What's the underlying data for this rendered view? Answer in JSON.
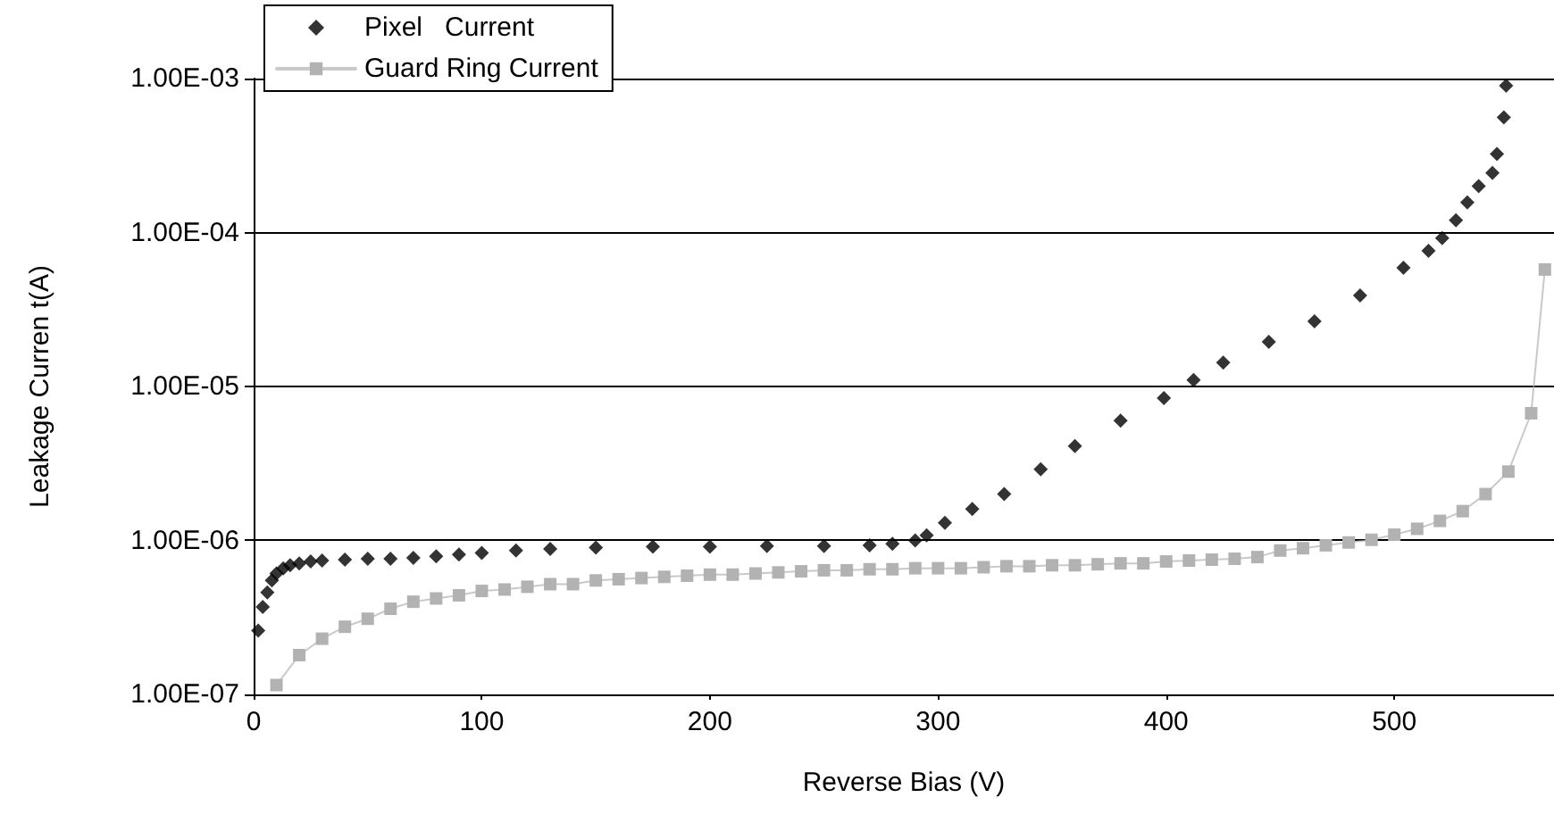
{
  "chart_data": {
    "type": "scatter",
    "xlabel": "Reverse Bias (V)",
    "ylabel": "Leakage Curren t(A)",
    "log": "y",
    "grid": "y",
    "legend": "top left",
    "xlim": [
      0,
      570
    ],
    "xticks": [
      0,
      100,
      200,
      300,
      400,
      500
    ],
    "ylim": [
      1e-07,
      0.001
    ],
    "yticks": [
      {
        "value": 1e-07,
        "label": "1.00E-07"
      },
      {
        "value": 1e-06,
        "label": "1.00E-06"
      },
      {
        "value": 1e-05,
        "label": "1.00E-05"
      },
      {
        "value": 0.0001,
        "label": "1.00E-04"
      },
      {
        "value": 0.001,
        "label": "1.00E-03"
      }
    ],
    "series": [
      {
        "name": "Pixel   Current",
        "marker": "diamond",
        "color": "#000000",
        "x": [
          2,
          4,
          6,
          8,
          10,
          13,
          16,
          20,
          25,
          30,
          40,
          50,
          60,
          70,
          80,
          90,
          100,
          115,
          130,
          150,
          175,
          200,
          225,
          250,
          270,
          280,
          290,
          295,
          303,
          315,
          329,
          345,
          360,
          380,
          399,
          412,
          425,
          445,
          465,
          485,
          504,
          515,
          521,
          527,
          532,
          537,
          543,
          545,
          548,
          549
        ],
        "values": [
          2.6e-07,
          3.7e-07,
          4.6e-07,
          5.5e-07,
          6.1e-07,
          6.6e-07,
          6.9e-07,
          7.1e-07,
          7.3e-07,
          7.4e-07,
          7.5e-07,
          7.6e-07,
          7.6e-07,
          7.7e-07,
          7.9e-07,
          8.1e-07,
          8.3e-07,
          8.6e-07,
          8.8e-07,
          9e-07,
          9.1e-07,
          9.1e-07,
          9.2e-07,
          9.2e-07,
          9.3e-07,
          9.5e-07,
          1e-06,
          1.08e-06,
          1.3e-06,
          1.6e-06,
          2e-06,
          2.9e-06,
          4.1e-06,
          6e-06,
          8.4e-06,
          1.1e-05,
          1.43e-05,
          1.95e-05,
          2.65e-05,
          3.9e-05,
          5.9e-05,
          7.6e-05,
          9.2e-05,
          0.00012,
          0.000157,
          0.0002,
          0.000244,
          0.000324,
          0.00056,
          0.0009
        ]
      },
      {
        "name": "Guard Ring Current",
        "type": "line",
        "marker": "square",
        "line_style": "solid",
        "color": "#b2b2b2",
        "x": [
          10,
          20,
          30,
          40,
          50,
          60,
          70,
          80,
          90,
          100,
          110,
          120,
          130,
          140,
          150,
          160,
          170,
          180,
          190,
          200,
          210,
          220,
          230,
          240,
          250,
          260,
          270,
          280,
          290,
          300,
          310,
          320,
          330,
          340,
          350,
          360,
          370,
          380,
          390,
          400,
          410,
          420,
          430,
          440,
          450,
          460,
          470,
          480,
          490,
          500,
          510,
          520,
          530,
          540,
          550,
          560,
          566
        ],
        "values": [
          1.15e-07,
          1.8e-07,
          2.3e-07,
          2.75e-07,
          3.1e-07,
          3.6e-07,
          4e-07,
          4.2e-07,
          4.4e-07,
          4.7e-07,
          4.8e-07,
          5e-07,
          5.2e-07,
          5.2e-07,
          5.5e-07,
          5.6e-07,
          5.7e-07,
          5.8e-07,
          5.9e-07,
          6e-07,
          6e-07,
          6.1e-07,
          6.2e-07,
          6.3e-07,
          6.4e-07,
          6.4e-07,
          6.5e-07,
          6.5e-07,
          6.6e-07,
          6.6e-07,
          6.6e-07,
          6.7e-07,
          6.8e-07,
          6.8e-07,
          6.9e-07,
          6.9e-07,
          7e-07,
          7.1e-07,
          7.1e-07,
          7.3e-07,
          7.4e-07,
          7.5e-07,
          7.6e-07,
          7.8e-07,
          8.6e-07,
          8.9e-07,
          9.3e-07,
          9.7e-07,
          1.01e-06,
          1.09e-06,
          1.19e-06,
          1.34e-06,
          1.55e-06,
          2e-06,
          2.8e-06,
          6.7e-06,
          5.75e-05
        ]
      }
    ]
  }
}
